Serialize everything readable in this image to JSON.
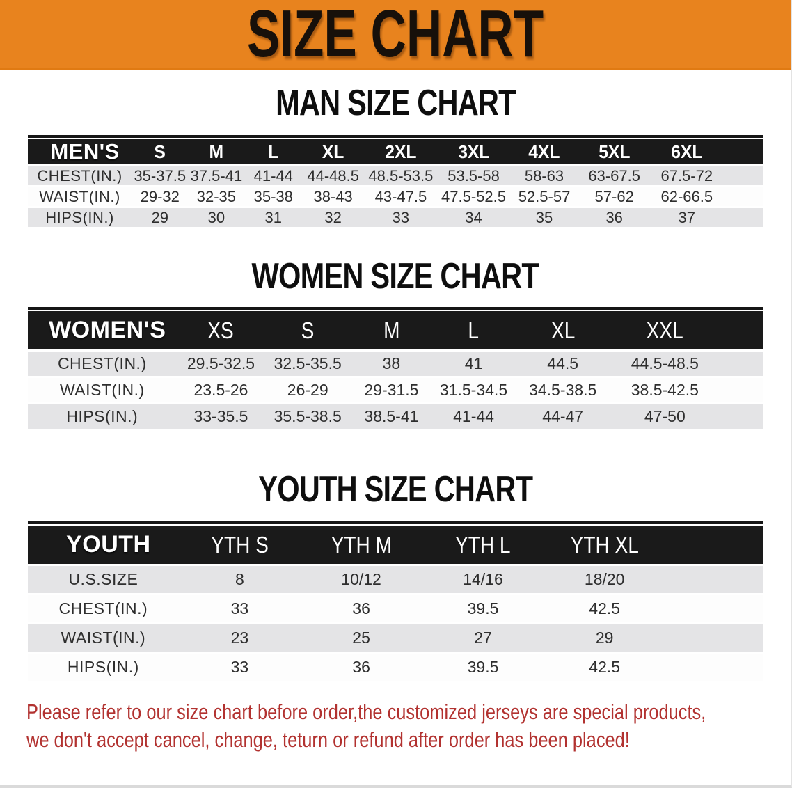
{
  "banner": {
    "title": "SIZE CHART"
  },
  "colors": {
    "banner_orange": "#e8831e",
    "table_header_black": "#1a1a1a",
    "row_gray": "#e4e4e6",
    "row_white": "#fdfdfd",
    "note_red": "#b23230"
  },
  "sections": [
    {
      "id": "men",
      "heading": "MAN SIZE CHART",
      "table": {
        "header": [
          "MEN'S",
          "S",
          "M",
          "L",
          "XL",
          "2XL",
          "3XL",
          "4XL",
          "5XL",
          "6XL"
        ],
        "rows": [
          {
            "label": "CHEST(IN.)",
            "values": [
              "35-37.5",
              "37.5-41",
              "41-44",
              "44-48.5",
              "48.5-53.5",
              "53.5-58",
              "58-63",
              "63-67.5",
              "67.5-72"
            ]
          },
          {
            "label": "WAIST(IN.)",
            "values": [
              "29-32",
              "32-35",
              "35-38",
              "38-43",
              "43-47.5",
              "47.5-52.5",
              "52.5-57",
              "57-62",
              "62-66.5"
            ]
          },
          {
            "label": "HIPS(IN.)",
            "values": [
              "29",
              "30",
              "31",
              "32",
              "33",
              "34",
              "35",
              "36",
              "37"
            ]
          }
        ]
      }
    },
    {
      "id": "women",
      "heading": "WOMEN SIZE CHART",
      "table": {
        "header": [
          "WOMEN'S",
          "XS",
          "S",
          "M",
          "L",
          "XL",
          "XXL"
        ],
        "rows": [
          {
            "label": "CHEST(IN.)",
            "values": [
              "29.5-32.5",
              "32.5-35.5",
              "38",
              "41",
              "44.5",
              "44.5-48.5"
            ]
          },
          {
            "label": "WAIST(IN.)",
            "values": [
              "23.5-26",
              "26-29",
              "29-31.5",
              "31.5-34.5",
              "34.5-38.5",
              "38.5-42.5"
            ]
          },
          {
            "label": "HIPS(IN.)",
            "values": [
              "33-35.5",
              "35.5-38.5",
              "38.5-41",
              "41-44",
              "44-47",
              "47-50"
            ]
          }
        ]
      }
    },
    {
      "id": "youth",
      "heading": "YOUTH SIZE CHART",
      "table": {
        "header": [
          "YOUTH",
          "YTH S",
          "YTH M",
          "YTH L",
          "YTH XL"
        ],
        "rows": [
          {
            "label": "U.S.SIZE",
            "values": [
              "8",
              "10/12",
              "14/16",
              "18/20"
            ]
          },
          {
            "label": "CHEST(IN.)",
            "values": [
              "33",
              "36",
              "39.5",
              "42.5"
            ]
          },
          {
            "label": "WAIST(IN.)",
            "values": [
              "23",
              "25",
              "27",
              "29"
            ]
          },
          {
            "label": "HIPS(IN.)",
            "values": [
              "33",
              "36",
              "39.5",
              "42.5"
            ]
          }
        ]
      }
    }
  ],
  "note": {
    "line1": "Please refer to our size chart before order,the customized jerseys are special products,",
    "line2": "we don't accept cancel, change, teturn or refund after order has been placed!"
  }
}
